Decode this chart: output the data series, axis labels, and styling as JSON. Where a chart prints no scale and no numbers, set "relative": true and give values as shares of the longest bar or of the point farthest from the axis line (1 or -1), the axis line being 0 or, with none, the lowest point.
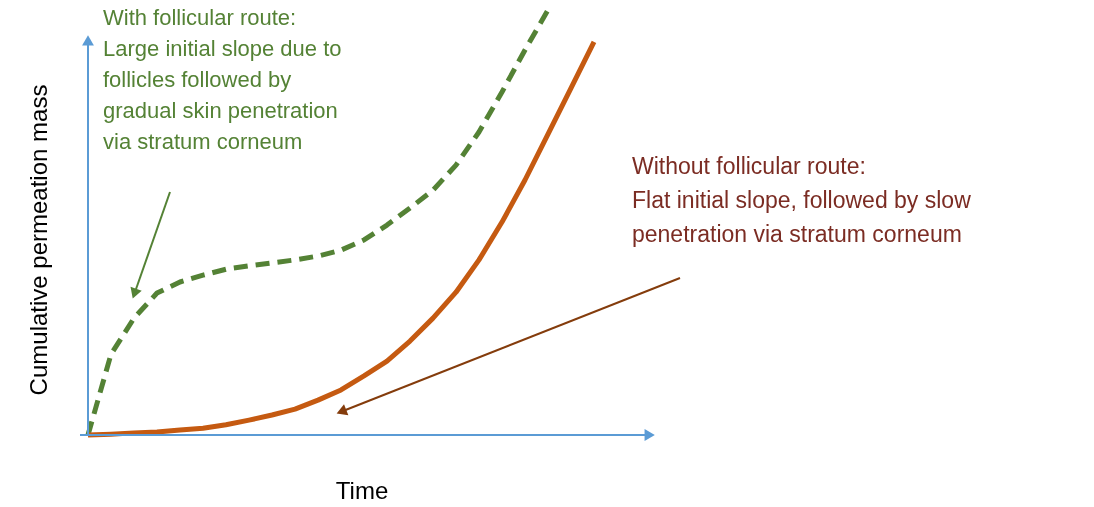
{
  "chart_data": {
    "type": "line",
    "relative": true,
    "xlabel": "Time",
    "ylabel": "Cumulative permeation mass",
    "legend": false,
    "categories": [
      null,
      null,
      null,
      null,
      null,
      null,
      null,
      null,
      null,
      null,
      null,
      null,
      null,
      null,
      null,
      null,
      null,
      null,
      null,
      null,
      null,
      null,
      null
    ],
    "series": [
      {
        "color": "#548235",
        "line_style": "dashed",
        "values": [
          0,
          0.19,
          0.275,
          0.334,
          0.36,
          0.376,
          0.39,
          0.398,
          0.405,
          0.412,
          0.421,
          0.435,
          0.459,
          0.494,
          0.534,
          0.576,
          0.635,
          0.713,
          0.807,
          0.906,
          1,
          null,
          null
        ]
      },
      {
        "color": "#c55a11",
        "line_style": "solid",
        "values": [
          0,
          0.002,
          0.005,
          0.007,
          0.012,
          0.016,
          0.024,
          0.035,
          0.047,
          0.061,
          0.082,
          0.106,
          0.139,
          0.174,
          0.221,
          0.275,
          0.336,
          0.412,
          0.501,
          0.6,
          0.708,
          0.816,
          0.925
        ]
      }
    ],
    "annotations": [
      "With follicular route:\nLarge initial slope due to\nfollicles followed by\ngradual skin penetration\nvia stratum corneum",
      "Without follicular route:\nFlat initial slope, followed by slow\npenetration via stratum corneum"
    ]
  }
}
